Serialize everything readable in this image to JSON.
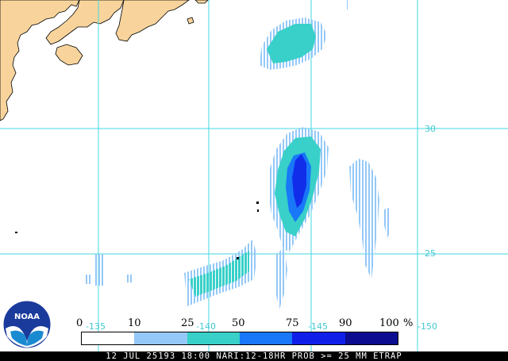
{
  "colors": {
    "land": "#f8d49c",
    "grid": "#40d8e0",
    "legend": [
      "#ffffff",
      "#94c8f8",
      "#38d0c8",
      "#1878f8",
      "#1020e8",
      "#0c0c90"
    ]
  },
  "grid_labels": {
    "lat": [
      "30",
      "25"
    ],
    "lon": [
      "-135",
      "-140",
      "-145",
      "-150"
    ]
  },
  "legend": {
    "values": [
      "0",
      "10",
      "25",
      "50",
      "75",
      "90",
      "100"
    ],
    "unit": "%"
  },
  "footer": {
    "text": "12 JUL 25193 18:00 NARI:12-18HR PROB >= 25 MM ETRAP"
  },
  "logo": {
    "text": "NOAA"
  }
}
